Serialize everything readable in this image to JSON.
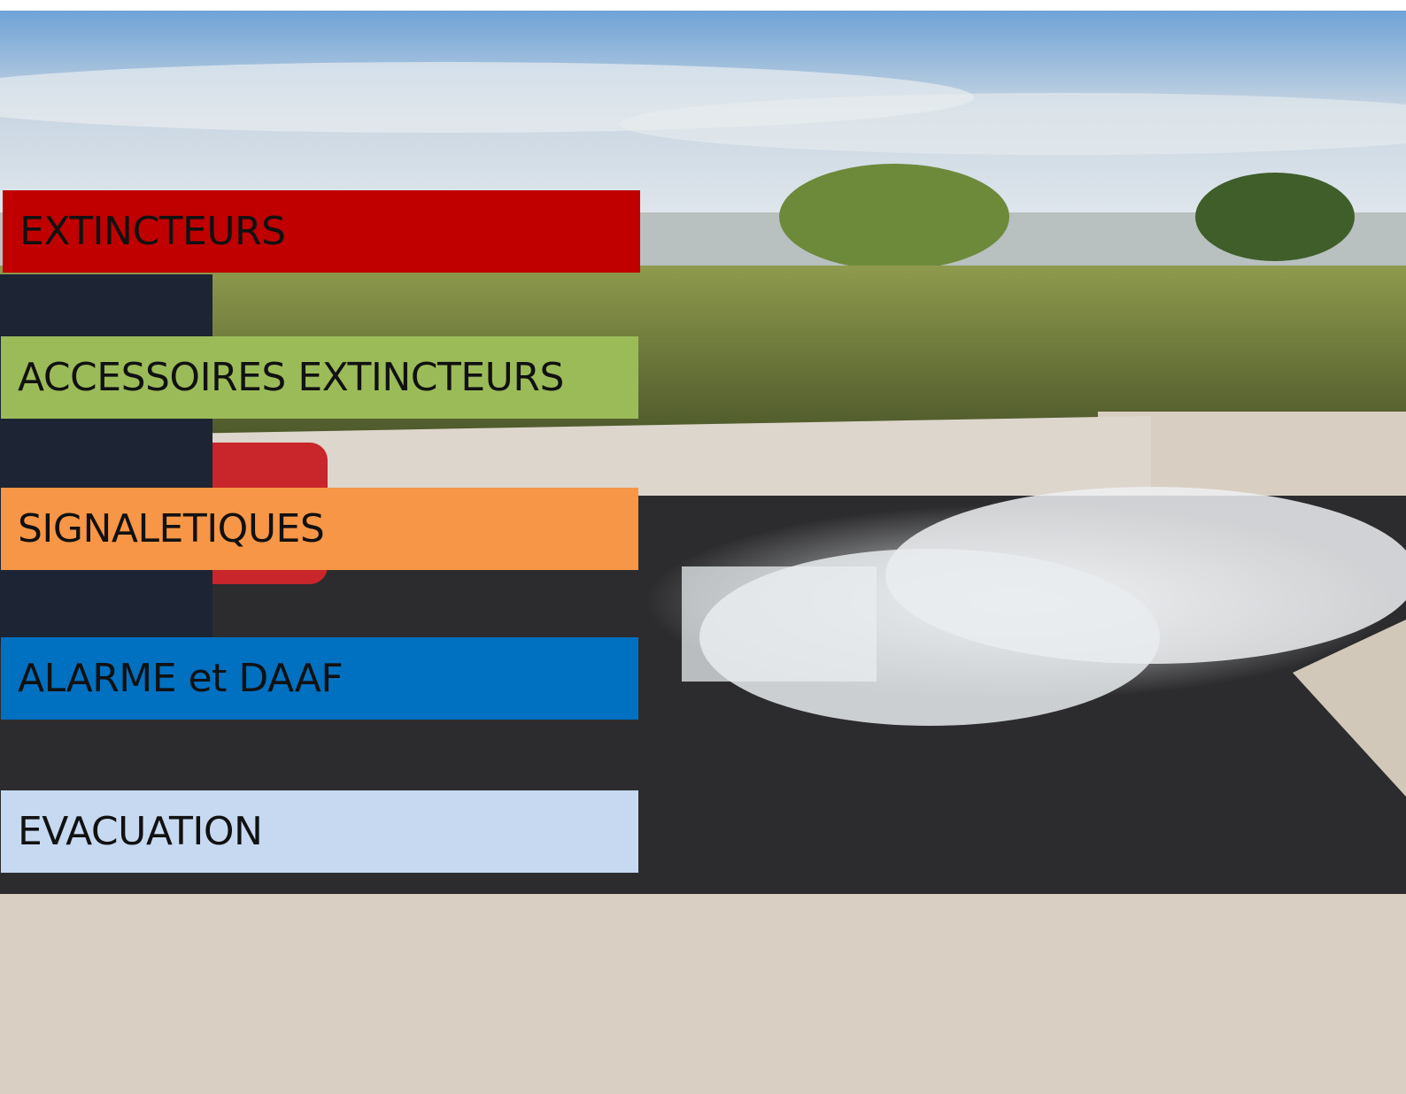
{
  "menu": {
    "items": [
      {
        "label": "EXTINCTEURS"
      },
      {
        "label": "ACCESSOIRES EXTINCTEURS"
      },
      {
        "label": "SIGNALETIQUES"
      },
      {
        "label": "ALARME et DAAF"
      },
      {
        "label": "EVACUATION"
      }
    ]
  }
}
